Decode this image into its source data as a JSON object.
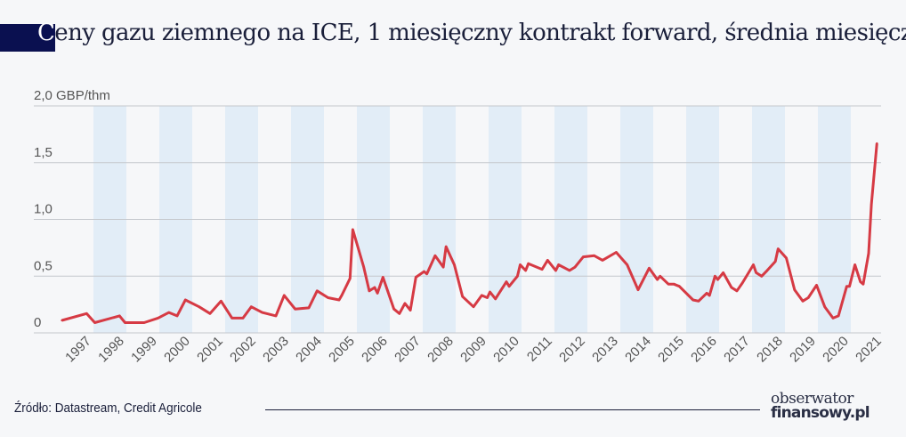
{
  "title": {
    "first_letter": "C",
    "rest": "eny gazu ziemnego na ICE, 1 miesięczny kontrakt forward, średnia miesięczna"
  },
  "footer": {
    "source": "Źródło: Datastream, Credit Agricole",
    "logo_line1": "obserwator",
    "logo_line2": "finansowy.pl"
  },
  "colors": {
    "line": "#d63a44",
    "band": "#e2edf7",
    "title_bar": "#0a1050",
    "grid": "#c4c7cc"
  },
  "chart_data": {
    "type": "line",
    "title": "Ceny gazu ziemnego na ICE, 1 miesięczny kontrakt forward, średnia miesięczna",
    "ylabel": "GBP/thm",
    "ylim": [
      0,
      2.0
    ],
    "yticks": [
      {
        "v": 0,
        "label": "0"
      },
      {
        "v": 0.5,
        "label": "0,5"
      },
      {
        "v": 1.0,
        "label": "1,0"
      },
      {
        "v": 1.5,
        "label": "1,5"
      },
      {
        "v": 2.0,
        "label": "2,0 GBP/thm"
      }
    ],
    "xlim": [
      "1997-01",
      "2021-10"
    ],
    "xticks": [
      "1997",
      "1998",
      "1999",
      "2000",
      "2001",
      "2002",
      "2003",
      "2004",
      "2005",
      "2006",
      "2007",
      "2008",
      "2009",
      "2010",
      "2011",
      "2012",
      "2013",
      "2014",
      "2015",
      "2016",
      "2017",
      "2018",
      "2019",
      "2020",
      "2021"
    ],
    "shaded_years": [
      "1998",
      "2000",
      "2002",
      "2004",
      "2006",
      "2008",
      "2010",
      "2012",
      "2014",
      "2016",
      "2018",
      "2020"
    ],
    "grid": true,
    "series": [
      {
        "points": [
          [
            "1997-01",
            0.11
          ],
          [
            "1997-10",
            0.17
          ],
          [
            "1998-01",
            0.09
          ],
          [
            "1998-10",
            0.15
          ],
          [
            "1998-12",
            0.09
          ],
          [
            "1999-07",
            0.09
          ],
          [
            "1999-12",
            0.13
          ],
          [
            "2000-04",
            0.18
          ],
          [
            "2000-07",
            0.15
          ],
          [
            "2000-10",
            0.29
          ],
          [
            "2001-03",
            0.23
          ],
          [
            "2001-07",
            0.17
          ],
          [
            "2001-11",
            0.28
          ],
          [
            "2002-03",
            0.13
          ],
          [
            "2002-07",
            0.13
          ],
          [
            "2002-10",
            0.23
          ],
          [
            "2003-02",
            0.18
          ],
          [
            "2003-07",
            0.15
          ],
          [
            "2003-10",
            0.33
          ],
          [
            "2004-02",
            0.21
          ],
          [
            "2004-07",
            0.22
          ],
          [
            "2004-10",
            0.37
          ],
          [
            "2005-02",
            0.31
          ],
          [
            "2005-06",
            0.29
          ],
          [
            "2005-07",
            0.33
          ],
          [
            "2005-10",
            0.48
          ],
          [
            "2005-11",
            0.91
          ],
          [
            "2006-03",
            0.58
          ],
          [
            "2006-05",
            0.37
          ],
          [
            "2006-07",
            0.4
          ],
          [
            "2006-08",
            0.35
          ],
          [
            "2006-10",
            0.49
          ],
          [
            "2007-02",
            0.21
          ],
          [
            "2007-04",
            0.17
          ],
          [
            "2007-06",
            0.26
          ],
          [
            "2007-08",
            0.2
          ],
          [
            "2007-10",
            0.49
          ],
          [
            "2008-01",
            0.54
          ],
          [
            "2008-02",
            0.52
          ],
          [
            "2008-05",
            0.68
          ],
          [
            "2008-08",
            0.58
          ],
          [
            "2008-09",
            0.76
          ],
          [
            "2008-12",
            0.6
          ],
          [
            "2009-03",
            0.32
          ],
          [
            "2009-07",
            0.23
          ],
          [
            "2009-10",
            0.33
          ],
          [
            "2009-12",
            0.31
          ],
          [
            "2010-01",
            0.36
          ],
          [
            "2010-03",
            0.3
          ],
          [
            "2010-07",
            0.45
          ],
          [
            "2010-08",
            0.41
          ],
          [
            "2010-11",
            0.5
          ],
          [
            "2010-12",
            0.6
          ],
          [
            "2011-02",
            0.55
          ],
          [
            "2011-03",
            0.61
          ],
          [
            "2011-08",
            0.56
          ],
          [
            "2011-10",
            0.64
          ],
          [
            "2012-01",
            0.55
          ],
          [
            "2012-02",
            0.6
          ],
          [
            "2012-06",
            0.55
          ],
          [
            "2012-08",
            0.58
          ],
          [
            "2012-11",
            0.67
          ],
          [
            "2013-03",
            0.68
          ],
          [
            "2013-06",
            0.64
          ],
          [
            "2013-11",
            0.71
          ],
          [
            "2014-03",
            0.6
          ],
          [
            "2014-07",
            0.38
          ],
          [
            "2014-11",
            0.57
          ],
          [
            "2015-02",
            0.47
          ],
          [
            "2015-03",
            0.5
          ],
          [
            "2015-06",
            0.43
          ],
          [
            "2015-08",
            0.43
          ],
          [
            "2015-10",
            0.41
          ],
          [
            "2016-03",
            0.29
          ],
          [
            "2016-05",
            0.28
          ],
          [
            "2016-08",
            0.35
          ],
          [
            "2016-09",
            0.33
          ],
          [
            "2016-11",
            0.5
          ],
          [
            "2016-12",
            0.47
          ],
          [
            "2017-02",
            0.53
          ],
          [
            "2017-05",
            0.4
          ],
          [
            "2017-07",
            0.37
          ],
          [
            "2017-09",
            0.44
          ],
          [
            "2018-01",
            0.6
          ],
          [
            "2018-02",
            0.53
          ],
          [
            "2018-04",
            0.5
          ],
          [
            "2018-06",
            0.55
          ],
          [
            "2018-09",
            0.63
          ],
          [
            "2018-10",
            0.74
          ],
          [
            "2019-01",
            0.66
          ],
          [
            "2019-04",
            0.38
          ],
          [
            "2019-07",
            0.28
          ],
          [
            "2019-09",
            0.31
          ],
          [
            "2019-12",
            0.42
          ],
          [
            "2020-03",
            0.23
          ],
          [
            "2020-06",
            0.13
          ],
          [
            "2020-08",
            0.15
          ],
          [
            "2020-11",
            0.41
          ],
          [
            "2020-12",
            0.41
          ],
          [
            "2021-02",
            0.6
          ],
          [
            "2021-04",
            0.45
          ],
          [
            "2021-05",
            0.43
          ],
          [
            "2021-07",
            0.7
          ],
          [
            "2021-08",
            1.13
          ],
          [
            "2021-10",
            1.67
          ]
        ]
      }
    ]
  }
}
